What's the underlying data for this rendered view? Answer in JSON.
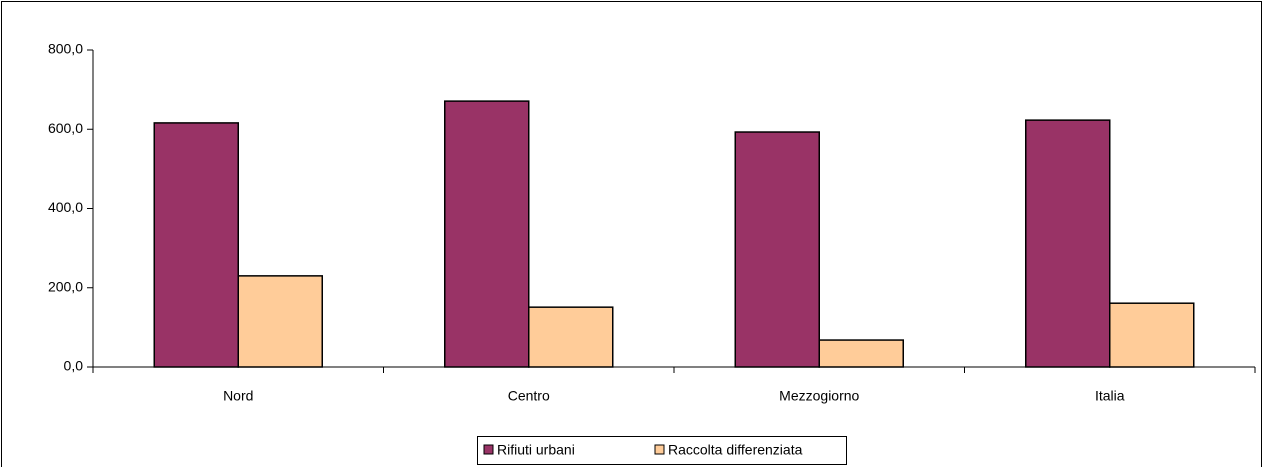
{
  "chart_data": {
    "type": "bar",
    "categories": [
      "Nord",
      "Centro",
      "Mezzogiorno",
      "Italia"
    ],
    "series": [
      {
        "name": "Rifiuti urbani",
        "color": "#993366",
        "values": [
          616,
          671,
          593,
          623
        ]
      },
      {
        "name": "Raccolta differenziata",
        "color": "#ffcc99",
        "values": [
          230,
          151,
          68,
          161
        ]
      }
    ],
    "ylim": [
      0,
      800
    ],
    "yticks": [
      {
        "value": 0,
        "label": "0,0"
      },
      {
        "value": 200,
        "label": "200,0"
      },
      {
        "value": 400,
        "label": "400,0"
      },
      {
        "value": 600,
        "label": "600,0"
      },
      {
        "value": 800,
        "label": "800,0"
      }
    ],
    "grid": false,
    "legend": "bottom"
  }
}
